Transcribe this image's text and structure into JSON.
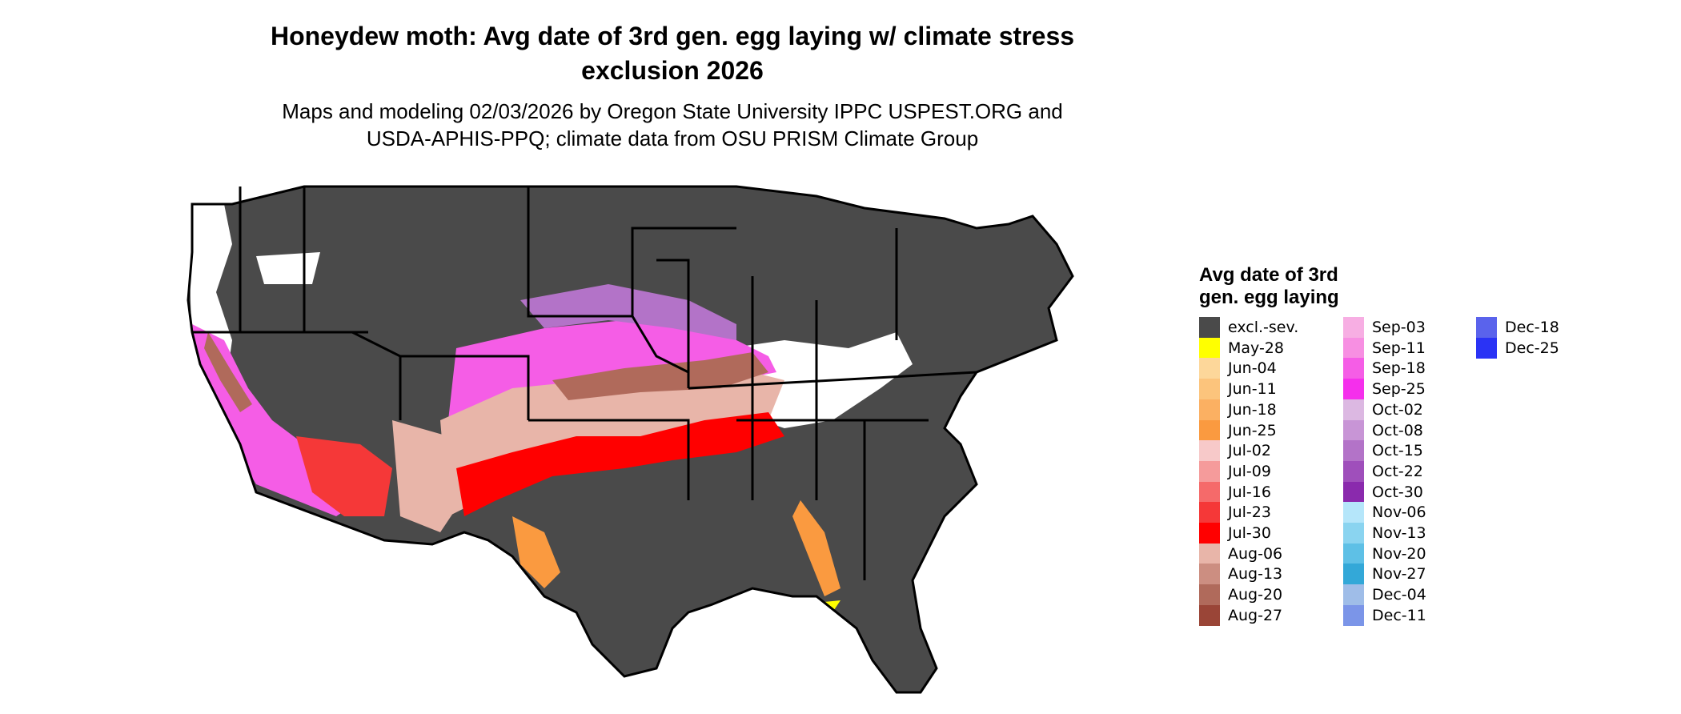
{
  "title_line1": "Honeydew moth: Avg date of 3rd gen. egg laying w/ climate stress",
  "title_line2": "exclusion 2026",
  "subtitle_line1": "Maps and modeling 02/03/2026 by Oregon State University IPPC USPEST.ORG and",
  "subtitle_line2": "USDA-APHIS-PPQ; climate data from OSU PRISM Climate Group",
  "legend": {
    "title_line1": "Avg date of 3rd",
    "title_line2": "gen. egg laying",
    "columns": [
      [
        {
          "label": "excl.-sev.",
          "color": "#4a4a4a"
        },
        {
          "label": "May-28",
          "color": "#ffff00"
        },
        {
          "label": "Jun-04",
          "color": "#fdd79a"
        },
        {
          "label": "Jun-11",
          "color": "#fcc47c"
        },
        {
          "label": "Jun-18",
          "color": "#fbb062"
        },
        {
          "label": "Jun-25",
          "color": "#fa9a40"
        },
        {
          "label": "Jul-02",
          "color": "#f7c9c9"
        },
        {
          "label": "Jul-09",
          "color": "#f59b9b"
        },
        {
          "label": "Jul-16",
          "color": "#f56a6a"
        },
        {
          "label": "Jul-23",
          "color": "#f53838"
        },
        {
          "label": "Jul-30",
          "color": "#ff0000"
        },
        {
          "label": "Aug-06",
          "color": "#e8b5a9"
        },
        {
          "label": "Aug-13",
          "color": "#cc8e81"
        },
        {
          "label": "Aug-20",
          "color": "#b06a5b"
        },
        {
          "label": "Aug-27",
          "color": "#9a4537"
        }
      ],
      [
        {
          "label": "Sep-03",
          "color": "#f7aee3"
        },
        {
          "label": "Sep-11",
          "color": "#f78fe2"
        },
        {
          "label": "Sep-18",
          "color": "#f55de6"
        },
        {
          "label": "Sep-25",
          "color": "#f52fec"
        },
        {
          "label": "Oct-02",
          "color": "#dcb8e2"
        },
        {
          "label": "Oct-08",
          "color": "#c895d6"
        },
        {
          "label": "Oct-15",
          "color": "#b373c8"
        },
        {
          "label": "Oct-22",
          "color": "#9f4fbb"
        },
        {
          "label": "Oct-30",
          "color": "#8a2aad"
        },
        {
          "label": "Nov-06",
          "color": "#b5e6fa"
        },
        {
          "label": "Nov-13",
          "color": "#8ad4f0"
        },
        {
          "label": "Nov-20",
          "color": "#5ec0e6"
        },
        {
          "label": "Nov-27",
          "color": "#33a8d8"
        },
        {
          "label": "Dec-04",
          "color": "#9fbde8"
        },
        {
          "label": "Dec-11",
          "color": "#7b95e8"
        }
      ],
      [
        {
          "label": "Dec-18",
          "color": "#5a63ec"
        },
        {
          "label": "Dec-25",
          "color": "#2a33f5"
        }
      ]
    ]
  },
  "colors": {
    "excluded": "#4a4a4a",
    "state_lines": "#000000",
    "no_data": "#ffffff"
  }
}
